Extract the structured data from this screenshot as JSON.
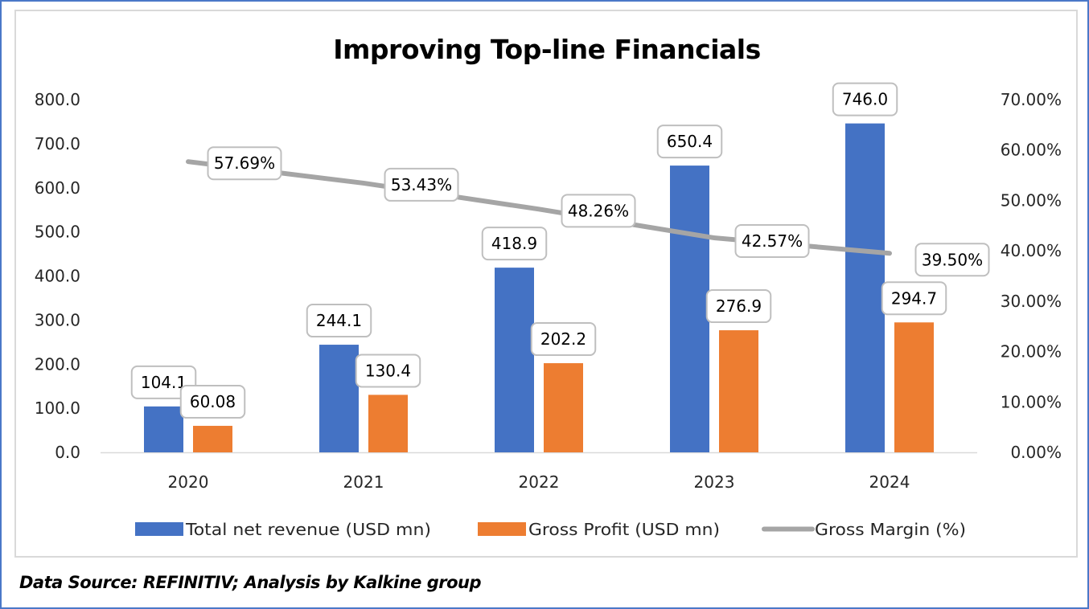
{
  "chart_data": {
    "type": "bar",
    "title": "Improving Top-line Financials",
    "categories": [
      "2020",
      "2021",
      "2022",
      "2023",
      "2024"
    ],
    "series": [
      {
        "name": "Total net revenue (USD mn)",
        "type": "bar",
        "axis": "left",
        "color": "#4472c4",
        "values": [
          104.1,
          244.1,
          418.9,
          650.4,
          746.0
        ],
        "labels": [
          "104.1",
          "244.1",
          "418.9",
          "650.4",
          "746.0"
        ]
      },
      {
        "name": "Gross Profit (USD mn)",
        "type": "bar",
        "axis": "left",
        "color": "#ed7d31",
        "values": [
          60.08,
          130.4,
          202.2,
          276.9,
          294.7
        ],
        "labels": [
          "60.08",
          "130.4",
          "202.2",
          "276.9",
          "294.7"
        ]
      },
      {
        "name": "Gross Margin (%)",
        "type": "line",
        "axis": "right",
        "color": "#a5a5a5",
        "values": [
          57.69,
          53.43,
          48.26,
          42.57,
          39.5
        ],
        "labels": [
          "57.69%",
          "53.43%",
          "48.26%",
          "42.57%",
          "39.50%"
        ]
      }
    ],
    "left_axis": {
      "min": 0,
      "max": 800,
      "ticks": [
        "0.0",
        "100.0",
        "200.0",
        "300.0",
        "400.0",
        "500.0",
        "600.0",
        "700.0",
        "800.0"
      ]
    },
    "right_axis": {
      "min": 0,
      "max": 70,
      "ticks": [
        "0.00%",
        "10.00%",
        "20.00%",
        "30.00%",
        "40.00%",
        "50.00%",
        "60.00%",
        "70.00%"
      ]
    },
    "xlabel": "",
    "ylabel": "",
    "grid": false,
    "legend": "bottom"
  },
  "footer": "Data Source: REFINITIV; Analysis by Kalkine group"
}
